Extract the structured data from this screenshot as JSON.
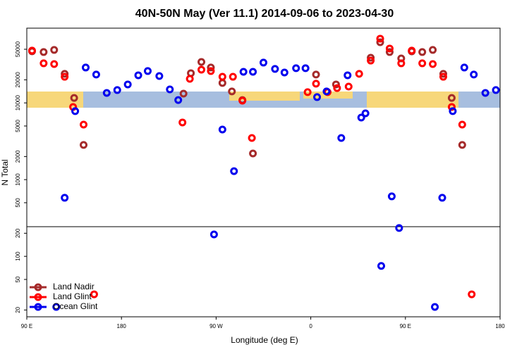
{
  "chart_data": {
    "type": "scatter",
    "title": "40N-50N May (Ver 11.1)   2014-09-06 to 2023-04-30",
    "xlabel": "Longitude (deg E)",
    "ylabel": "N Total",
    "log_y": true,
    "xlim": [
      90,
      540
    ],
    "ylim": [
      16.3,
      94200
    ],
    "xticks": [
      {
        "value": 90,
        "label": "90 E"
      },
      180,
      {
        "value": 270,
        "label": "90 W"
      },
      {
        "value": 360,
        "label": "0"
      },
      {
        "value": 450,
        "label": "90 E"
      },
      {
        "value": 540,
        "label": "180"
      }
    ],
    "yticks": [
      20,
      50,
      100,
      200,
      500,
      1000,
      2000,
      5000,
      10000,
      20000,
      50000
    ],
    "legend": "bottom-left",
    "series": [
      {
        "name": "Land Nadir",
        "color": "#a52a2a",
        "x": [
          95,
          106,
          116,
          126,
          135,
          144,
          239,
          246,
          256,
          265,
          276,
          285,
          295,
          305,
          365,
          384,
          417,
          426,
          435,
          446,
          456,
          466,
          476,
          486,
          494,
          504
        ],
        "values": [
          47000,
          46000,
          49000,
          23900,
          11600,
          2830,
          13200,
          24400,
          34200,
          28900,
          18200,
          14100,
          10900,
          2190,
          23400,
          17400,
          38800,
          61800,
          46000,
          38000,
          46900,
          46000,
          49000,
          23900,
          11600,
          2830
        ]
      },
      {
        "name": "Land Glint",
        "color": "#ff0000",
        "x": [
          95,
          106,
          116,
          126,
          134,
          144,
          154,
          238,
          245,
          256,
          265,
          276,
          286,
          295,
          304,
          357,
          365,
          376,
          385,
          396,
          406,
          417,
          426,
          435,
          446,
          456,
          466,
          476,
          486,
          494,
          504,
          513
        ],
        "values": [
          48000,
          32800,
          32100,
          21900,
          8850,
          5210,
          32,
          5560,
          20600,
          27100,
          26000,
          21900,
          21900,
          10700,
          3490,
          13800,
          17800,
          13800,
          15600,
          16300,
          23900,
          35600,
          68700,
          51100,
          32800,
          48000,
          32800,
          32100,
          21900,
          8850,
          5210,
          32
        ]
      },
      {
        "name": "Ocean Glint",
        "color": "#0000ee",
        "x": [
          118,
          126,
          136,
          146,
          156,
          166,
          176,
          186,
          196,
          205,
          216,
          226,
          234,
          268,
          276,
          287,
          296,
          305,
          315,
          326,
          335,
          346,
          355,
          366,
          375,
          389,
          395,
          408,
          412,
          427,
          437,
          444,
          478,
          485,
          495,
          506,
          515,
          526,
          536
        ],
        "values": [
          21.9,
          580,
          7800,
          28900,
          23400,
          13500,
          14700,
          17400,
          22900,
          26000,
          22400,
          15000,
          10900,
          193,
          4500,
          1290,
          25400,
          25400,
          33500,
          27700,
          24900,
          28300,
          28300,
          11900,
          14100,
          3490,
          22900,
          6440,
          7310,
          75,
          605,
          234,
          21.9,
          580,
          7800,
          28900,
          23400,
          13500,
          14700
        ]
      }
    ]
  }
}
